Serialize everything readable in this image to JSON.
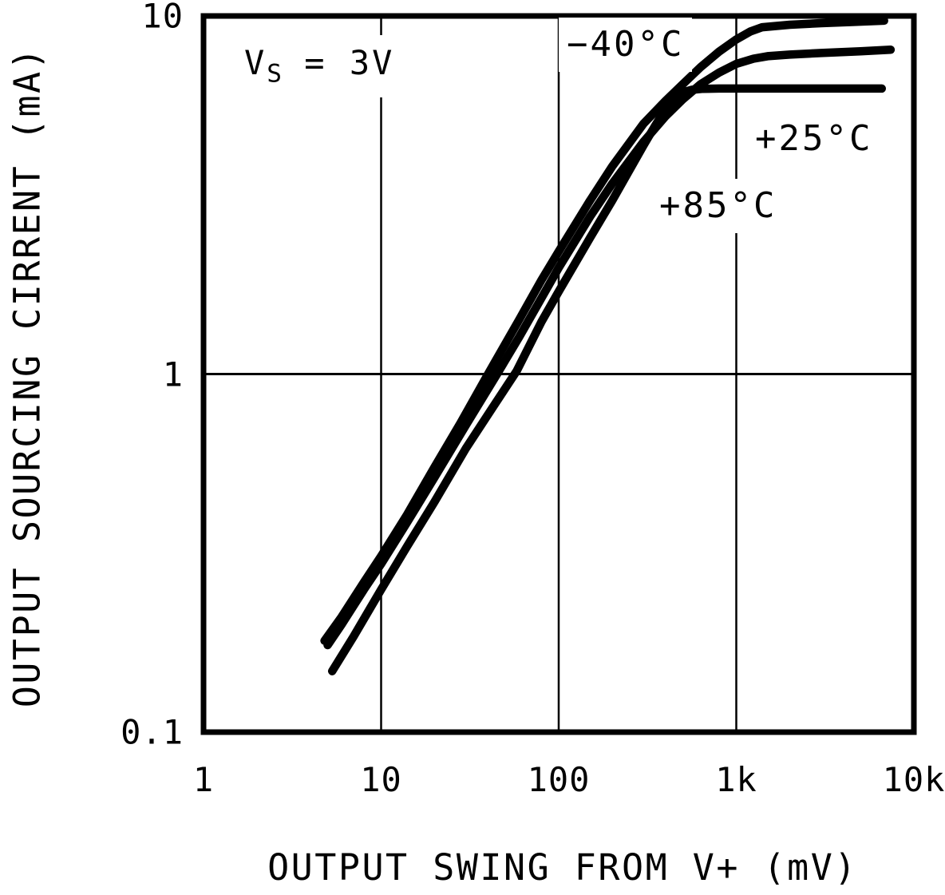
{
  "figure": {
    "x_axis": {
      "title": "OUTPUT SWING FROM V+ (mV)",
      "ticks": [
        {
          "label": "1",
          "value": 1
        },
        {
          "label": "10",
          "value": 10
        },
        {
          "label": "100",
          "value": 100
        },
        {
          "label": "1k",
          "value": 1000
        },
        {
          "label": "10k",
          "value": 10000
        }
      ]
    },
    "y_axis": {
      "title": "OUTPUT SOURCING CIRRENT (mA)",
      "ticks": [
        {
          "label": "10",
          "value": 10
        },
        {
          "label": "1",
          "value": 1
        },
        {
          "label": "0.1",
          "value": 0.1
        }
      ]
    },
    "annotation": {
      "v": "V",
      "sub": "S",
      "rest": " = 3V"
    },
    "curve_labels": {
      "m40": "−40°C",
      "p25": "+25°C",
      "p85": "+85°C"
    },
    "line_color": "#000000",
    "background_color": "#ffffff"
  },
  "chart_data": {
    "type": "line",
    "title": "",
    "xlabel": "OUTPUT SWING FROM V+ (mV)",
    "ylabel": "OUTPUT SOURCING CIRRENT (mA)",
    "x_scale": "log",
    "y_scale": "log",
    "xlim": [
      1,
      10000
    ],
    "ylim": [
      0.1,
      10
    ],
    "x_gridlines": [
      10,
      100,
      1000
    ],
    "y_gridlines": [
      1
    ],
    "grid": true,
    "legend_position": "inline-labels",
    "annotation": "VS = 3V",
    "series": [
      {
        "id": "m40",
        "name": "−40°C",
        "saturation_mA": 9.7,
        "points": [
          [
            4.8,
            0.18
          ],
          [
            6,
            0.21
          ],
          [
            8,
            0.262
          ],
          [
            10,
            0.31
          ],
          [
            14,
            0.405
          ],
          [
            20,
            0.55
          ],
          [
            28,
            0.73
          ],
          [
            40,
            1.0
          ],
          [
            60,
            1.42
          ],
          [
            80,
            1.83
          ],
          [
            100,
            2.2
          ],
          [
            150,
            3.05
          ],
          [
            200,
            3.8
          ],
          [
            300,
            5.0
          ],
          [
            400,
            5.8
          ],
          [
            500,
            6.45
          ],
          [
            630,
            7.2
          ],
          [
            800,
            7.95
          ],
          [
            1000,
            8.6
          ],
          [
            1200,
            9.05
          ],
          [
            1400,
            9.3
          ],
          [
            2000,
            9.45
          ],
          [
            3000,
            9.55
          ],
          [
            4500,
            9.62
          ],
          [
            6800,
            9.7
          ]
        ]
      },
      {
        "id": "p25",
        "name": "+25°C",
        "saturation_mA": 8.0,
        "points": [
          [
            5.0,
            0.175
          ],
          [
            6,
            0.2
          ],
          [
            8,
            0.25
          ],
          [
            10,
            0.295
          ],
          [
            14,
            0.385
          ],
          [
            20,
            0.515
          ],
          [
            30,
            0.72
          ],
          [
            45,
            1.0
          ],
          [
            60,
            1.27
          ],
          [
            80,
            1.63
          ],
          [
            100,
            1.98
          ],
          [
            150,
            2.75
          ],
          [
            200,
            3.4
          ],
          [
            300,
            4.45
          ],
          [
            400,
            5.25
          ],
          [
            500,
            5.85
          ],
          [
            630,
            6.45
          ],
          [
            800,
            6.95
          ],
          [
            1000,
            7.35
          ],
          [
            1250,
            7.6
          ],
          [
            1500,
            7.72
          ],
          [
            2000,
            7.8
          ],
          [
            3000,
            7.88
          ],
          [
            5000,
            7.97
          ],
          [
            7400,
            8.05
          ]
        ]
      },
      {
        "id": "p85",
        "name": "+85°C",
        "saturation_mA": 6.3,
        "points": [
          [
            5.3,
            0.148
          ],
          [
            7,
            0.185
          ],
          [
            10,
            0.25
          ],
          [
            14,
            0.33
          ],
          [
            20,
            0.44
          ],
          [
            30,
            0.62
          ],
          [
            42,
            0.8
          ],
          [
            58,
            1.02
          ],
          [
            80,
            1.4
          ],
          [
            100,
            1.7
          ],
          [
            150,
            2.4
          ],
          [
            200,
            3.05
          ],
          [
            300,
            4.35
          ],
          [
            350,
            4.95
          ],
          [
            400,
            5.5
          ],
          [
            450,
            5.9
          ],
          [
            500,
            6.12
          ],
          [
            560,
            6.22
          ],
          [
            650,
            6.26
          ],
          [
            800,
            6.27
          ],
          [
            1000,
            6.27
          ],
          [
            2000,
            6.27
          ],
          [
            4000,
            6.27
          ],
          [
            6600,
            6.27
          ]
        ]
      }
    ]
  }
}
